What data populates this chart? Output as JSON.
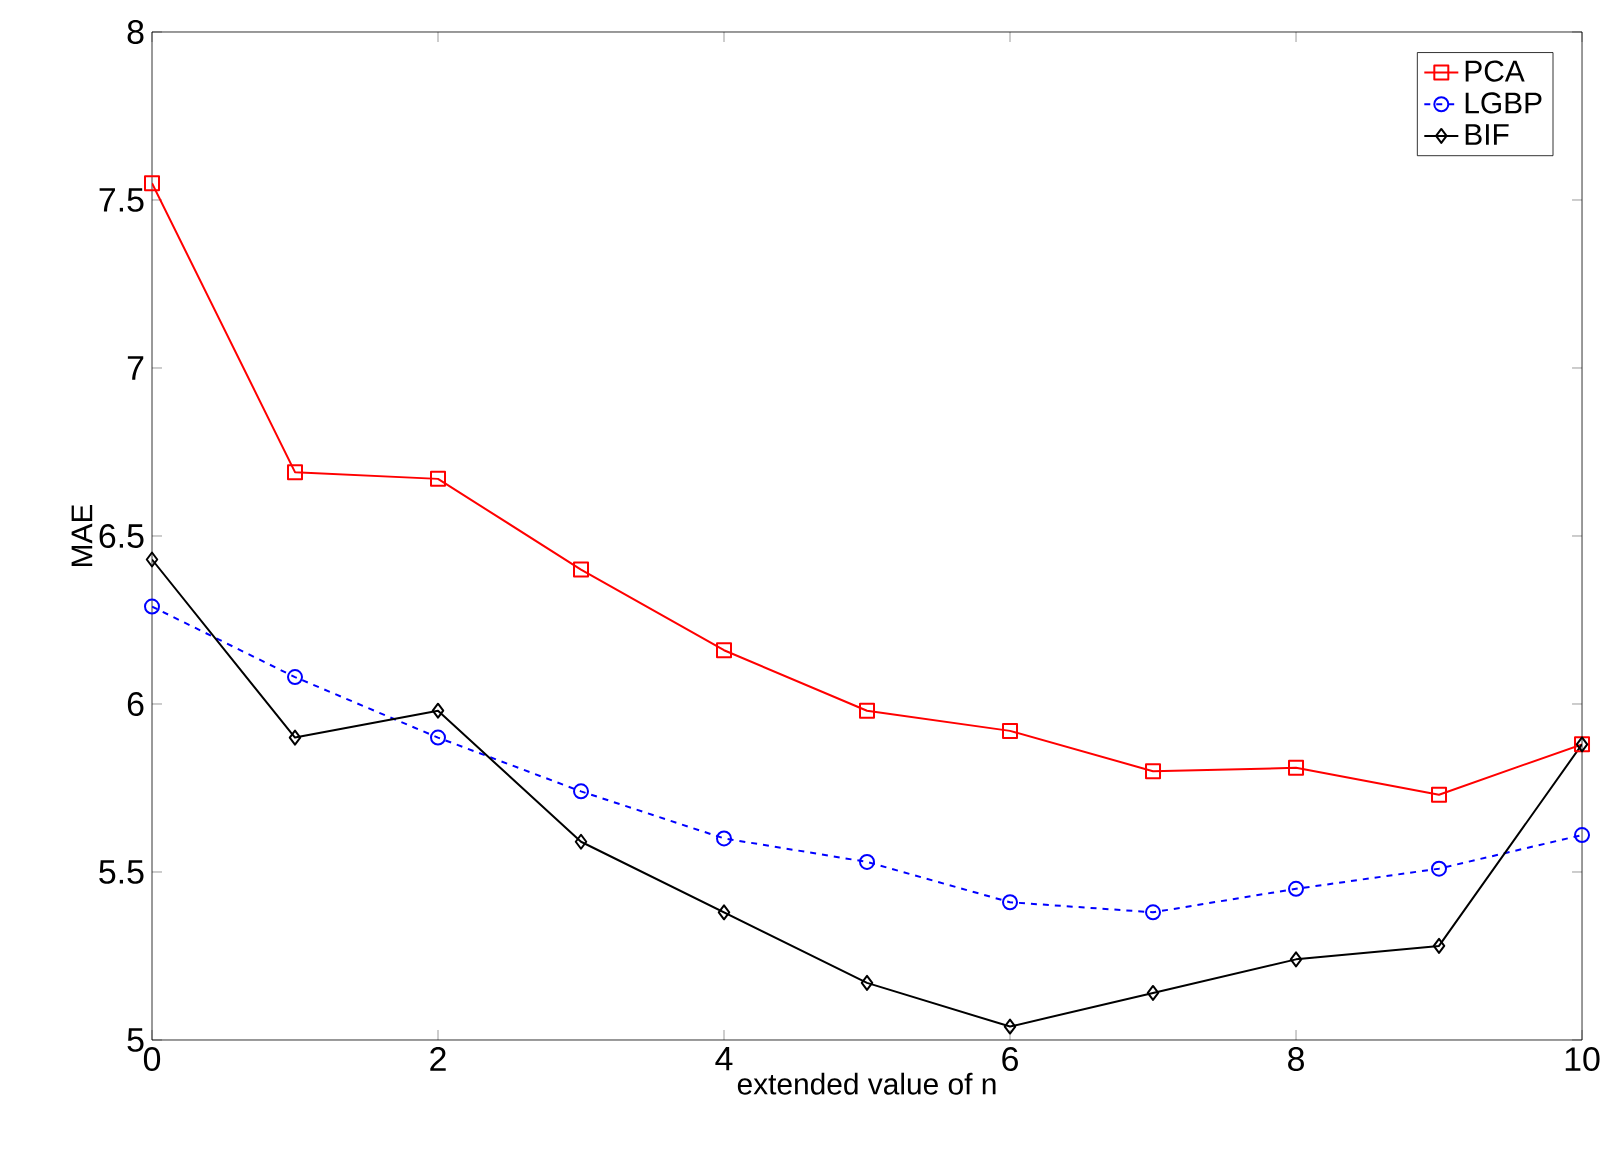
{
  "chart_data": {
    "type": "line",
    "xlabel": "extended value of n",
    "ylabel": "MAE",
    "x": [
      0,
      1,
      2,
      3,
      4,
      5,
      6,
      7,
      8,
      9,
      10
    ],
    "series": [
      {
        "name": "PCA",
        "color": "#ff0000",
        "marker": "square",
        "line_style": "solid",
        "values": [
          7.55,
          6.69,
          6.67,
          6.4,
          6.16,
          5.98,
          5.92,
          5.8,
          5.81,
          5.73,
          5.88
        ]
      },
      {
        "name": "LGBP",
        "color": "#0000ff",
        "marker": "circle",
        "line_style": "dashed",
        "values": [
          6.29,
          6.08,
          5.9,
          5.74,
          5.6,
          5.53,
          5.41,
          5.38,
          5.45,
          5.51,
          5.61
        ]
      },
      {
        "name": "BIF",
        "color": "#000000",
        "marker": "diamond",
        "line_style": "solid",
        "values": [
          6.43,
          5.9,
          5.98,
          5.59,
          5.38,
          5.17,
          5.04,
          5.14,
          5.24,
          5.28,
          5.88
        ]
      }
    ],
    "xlim": [
      0,
      10
    ],
    "ylim": [
      5,
      8
    ],
    "xticks": [
      0,
      2,
      4,
      6,
      8,
      10
    ],
    "yticks": [
      5,
      5.5,
      6,
      6.5,
      7,
      7.5,
      8
    ],
    "grid": false,
    "legend": "top right"
  }
}
